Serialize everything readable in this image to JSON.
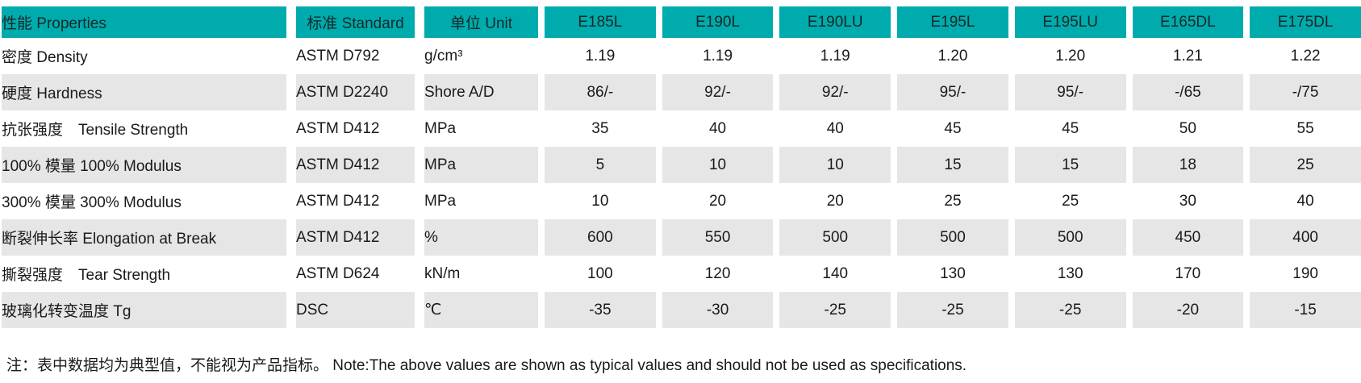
{
  "table": {
    "header": {
      "properties": "性能 Properties",
      "standard": "标准 Standard",
      "unit": "单位 Unit",
      "grades": [
        "E185L",
        "E190L",
        "E190LU",
        "E195L",
        "E195LU",
        "E165DL",
        "E175DL"
      ]
    },
    "rows": [
      {
        "property": "密度 Density",
        "standard": "ASTM D792",
        "unit": "g/cm³",
        "values": [
          "1.19",
          "1.19",
          "1.19",
          "1.20",
          "1.20",
          "1.21",
          "1.22"
        ]
      },
      {
        "property": "硬度 Hardness",
        "standard": "ASTM D2240",
        "unit": "Shore A/D",
        "values": [
          "86/-",
          "92/-",
          "92/-",
          "95/-",
          "95/-",
          "-/65",
          "-/75"
        ]
      },
      {
        "property": "抗张强度　Tensile Strength",
        "standard": "ASTM D412",
        "unit": "MPa",
        "values": [
          "35",
          "40",
          "40",
          "45",
          "45",
          "50",
          "55"
        ]
      },
      {
        "property": "100% 模量 100% Modulus",
        "standard": "ASTM D412",
        "unit": "MPa",
        "values": [
          "5",
          "10",
          "10",
          "15",
          "15",
          "18",
          "25"
        ]
      },
      {
        "property": "300% 模量 300% Modulus",
        "standard": "ASTM D412",
        "unit": "MPa",
        "values": [
          "10",
          "20",
          "20",
          "25",
          "25",
          "30",
          "40"
        ]
      },
      {
        "property": "断裂伸长率 Elongation at Break",
        "standard": "ASTM D412",
        "unit": "%",
        "values": [
          "600",
          "550",
          "500",
          "500",
          "500",
          "450",
          "400"
        ]
      },
      {
        "property": "撕裂强度　Tear Strength",
        "standard": "ASTM D624",
        "unit": "kN/m",
        "values": [
          "100",
          "120",
          "140",
          "130",
          "130",
          "170",
          "190"
        ]
      },
      {
        "property": "玻璃化转变温度 Tg",
        "standard": "DSC",
        "unit": "℃",
        "values": [
          "-35",
          "-30",
          "-25",
          "-25",
          "-25",
          "-20",
          "-15"
        ]
      }
    ],
    "note": "注：表中数据均为典型值，不能视为产品指标。 Note:The above values are shown as typical values and should not be used as specifications."
  },
  "colors": {
    "header_bg": "#00abad",
    "stripe_bg": "#e6e6e7",
    "text": "#1a1a1a"
  }
}
